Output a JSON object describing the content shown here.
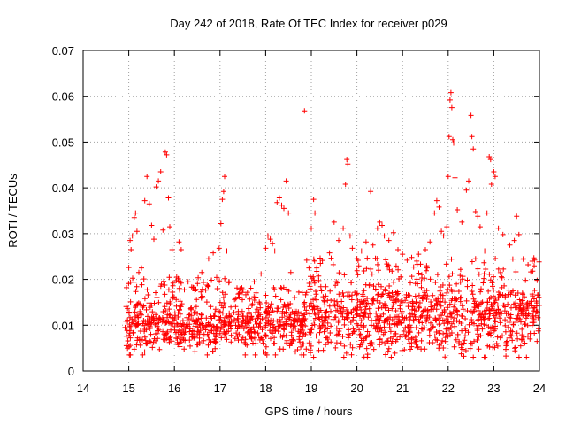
{
  "chart_data": {
    "type": "scatter",
    "title": "Day 242 of 2018, Rate Of TEC Index for receiver p029",
    "xlabel": "GPS time / hours",
    "ylabel": "ROTI / TECUs",
    "xlim": [
      14,
      24
    ],
    "ylim": [
      0,
      0.07
    ],
    "x_ticks": [
      14,
      15,
      16,
      17,
      18,
      19,
      20,
      21,
      22,
      23,
      24
    ],
    "x_tick_labels": [
      "14",
      "15",
      "16",
      "17",
      "18",
      "19",
      "20",
      "21",
      "22",
      "23",
      "24"
    ],
    "y_ticks": [
      0,
      0.01,
      0.02,
      0.03,
      0.04,
      0.05,
      0.06,
      0.07
    ],
    "y_tick_labels": [
      "0",
      "0.01",
      "0.02",
      "0.03",
      "0.04",
      "0.05",
      "0.06",
      "0.07"
    ],
    "grid": true,
    "marker": "plus",
    "color": "#ff0000",
    "series": [
      {
        "values": [
          [
            14.92,
            0.0095
          ],
          [
            14.95,
            0.0182
          ],
          [
            15.0,
            0.0226
          ],
          [
            15.03,
            0.0285
          ],
          [
            15.05,
            0.0265
          ],
          [
            15.08,
            0.0295
          ],
          [
            15.12,
            0.0335
          ],
          [
            15.15,
            0.0345
          ],
          [
            15.18,
            0.0305
          ],
          [
            15.22,
            0.0215
          ],
          [
            15.28,
            0.0225
          ],
          [
            15.35,
            0.0372
          ],
          [
            15.4,
            0.0425
          ],
          [
            15.45,
            0.0365
          ],
          [
            15.5,
            0.0318
          ],
          [
            15.55,
            0.0288
          ],
          [
            15.6,
            0.0402
          ],
          [
            15.65,
            0.0415
          ],
          [
            15.7,
            0.0435
          ],
          [
            15.75,
            0.0308
          ],
          [
            15.8,
            0.0478
          ],
          [
            15.83,
            0.0472
          ],
          [
            15.87,
            0.0378
          ],
          [
            15.9,
            0.0315
          ],
          [
            15.95,
            0.0265
          ],
          [
            16.05,
            0.0205
          ],
          [
            16.1,
            0.0282
          ],
          [
            16.15,
            0.0265
          ],
          [
            16.3,
            0.0195
          ],
          [
            16.45,
            0.0175
          ],
          [
            16.6,
            0.0215
          ],
          [
            16.75,
            0.0245
          ],
          [
            16.85,
            0.0258
          ],
          [
            16.98,
            0.0268
          ],
          [
            17.02,
            0.0322
          ],
          [
            17.05,
            0.0375
          ],
          [
            17.08,
            0.0392
          ],
          [
            17.1,
            0.0425
          ],
          [
            17.15,
            0.0262
          ],
          [
            17.2,
            0.0195
          ],
          [
            17.4,
            0.0168
          ],
          [
            17.6,
            0.0172
          ],
          [
            17.75,
            0.0195
          ],
          [
            17.9,
            0.0212
          ],
          [
            18.0,
            0.0268
          ],
          [
            18.05,
            0.0295
          ],
          [
            18.1,
            0.0288
          ],
          [
            18.15,
            0.0278
          ],
          [
            18.2,
            0.0262
          ],
          [
            18.25,
            0.0368
          ],
          [
            18.3,
            0.0378
          ],
          [
            18.35,
            0.0362
          ],
          [
            18.4,
            0.0355
          ],
          [
            18.45,
            0.0415
          ],
          [
            18.5,
            0.0345
          ],
          [
            18.55,
            0.0215
          ],
          [
            18.85,
            0.0568
          ],
          [
            18.9,
            0.0242
          ],
          [
            18.95,
            0.0225
          ],
          [
            19.0,
            0.0312
          ],
          [
            19.05,
            0.0375
          ],
          [
            19.08,
            0.0345
          ],
          [
            19.12,
            0.0225
          ],
          [
            19.2,
            0.0235
          ],
          [
            19.3,
            0.0262
          ],
          [
            19.4,
            0.0258
          ],
          [
            19.5,
            0.0325
          ],
          [
            19.6,
            0.0285
          ],
          [
            19.7,
            0.0312
          ],
          [
            19.75,
            0.0408
          ],
          [
            19.78,
            0.0462
          ],
          [
            19.8,
            0.0452
          ],
          [
            19.85,
            0.0295
          ],
          [
            19.9,
            0.0268
          ],
          [
            20.0,
            0.0245
          ],
          [
            20.1,
            0.0262
          ],
          [
            20.2,
            0.0282
          ],
          [
            20.3,
            0.0392
          ],
          [
            20.35,
            0.0275
          ],
          [
            20.45,
            0.0312
          ],
          [
            20.5,
            0.0325
          ],
          [
            20.55,
            0.0318
          ],
          [
            20.6,
            0.0295
          ],
          [
            20.7,
            0.0285
          ],
          [
            20.8,
            0.0302
          ],
          [
            20.9,
            0.0265
          ],
          [
            21.0,
            0.0255
          ],
          [
            21.1,
            0.0242
          ],
          [
            21.2,
            0.0248
          ],
          [
            21.35,
            0.0255
          ],
          [
            21.5,
            0.0265
          ],
          [
            21.6,
            0.0282
          ],
          [
            21.7,
            0.0345
          ],
          [
            21.75,
            0.0372
          ],
          [
            21.8,
            0.0358
          ],
          [
            21.85,
            0.0305
          ],
          [
            21.9,
            0.0295
          ],
          [
            21.97,
            0.0315
          ],
          [
            22.0,
            0.0425
          ],
          [
            22.02,
            0.0512
          ],
          [
            22.04,
            0.0592
          ],
          [
            22.06,
            0.0608
          ],
          [
            22.08,
            0.0575
          ],
          [
            22.1,
            0.0505
          ],
          [
            22.12,
            0.0498
          ],
          [
            22.15,
            0.0422
          ],
          [
            22.2,
            0.0352
          ],
          [
            22.3,
            0.0325
          ],
          [
            22.4,
            0.0395
          ],
          [
            22.45,
            0.0415
          ],
          [
            22.5,
            0.0558
          ],
          [
            22.52,
            0.0512
          ],
          [
            22.55,
            0.0485
          ],
          [
            22.6,
            0.0348
          ],
          [
            22.65,
            0.0338
          ],
          [
            22.7,
            0.0315
          ],
          [
            22.8,
            0.0262
          ],
          [
            22.85,
            0.0345
          ],
          [
            22.9,
            0.0468
          ],
          [
            22.93,
            0.0462
          ],
          [
            22.95,
            0.0408
          ],
          [
            23.0,
            0.0435
          ],
          [
            23.03,
            0.0425
          ],
          [
            23.1,
            0.0312
          ],
          [
            23.2,
            0.0298
          ],
          [
            23.35,
            0.0275
          ],
          [
            23.45,
            0.0285
          ],
          [
            23.5,
            0.0338
          ],
          [
            23.55,
            0.0298
          ],
          [
            23.65,
            0.0245
          ],
          [
            23.75,
            0.0232
          ],
          [
            23.85,
            0.0218
          ],
          [
            23.95,
            0.0198
          ]
        ]
      }
    ],
    "dense_band": {
      "note": "",
      "segments": [
        {
          "x": [
            14.92,
            17.25
          ],
          "y_low": 0.0035,
          "y_mid": 0.0095,
          "y_high": 0.0195
        },
        {
          "x": [
            17.3,
            18.9
          ],
          "y_low": 0.0035,
          "y_mid": 0.0095,
          "y_high": 0.0175
        },
        {
          "x": [
            18.95,
            24.0
          ],
          "y_low": 0.003,
          "y_mid": 0.011,
          "y_high": 0.0235
        }
      ]
    }
  }
}
